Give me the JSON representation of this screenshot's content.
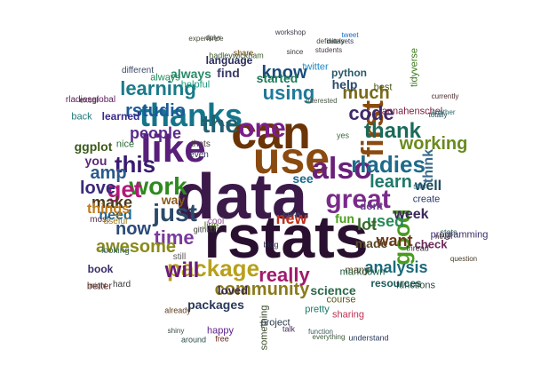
{
  "words": [
    {
      "text": "data",
      "color": "#3b1a4a"
    },
    {
      "text": "rstats",
      "color": "#2a1030"
    },
    {
      "text": "can",
      "color": "#6b3408"
    },
    {
      "text": "use",
      "color": "#8a4a10"
    },
    {
      "text": "like",
      "color": "#5a1f7a"
    },
    {
      "text": "thanks",
      "color": "#14758a"
    },
    {
      "text": "also",
      "color": "#6a1f7a"
    },
    {
      "text": "one",
      "color": "#7a1f8a"
    },
    {
      "text": "great",
      "color": "#7a2b8a"
    },
    {
      "text": "first",
      "color": "#8a4a10"
    },
    {
      "text": "the",
      "color": "#206070"
    },
    {
      "text": "this",
      "color": "#3a1a70"
    },
    {
      "text": "work",
      "color": "#2e8a1e"
    },
    {
      "text": "code",
      "color": "#3d2a6a"
    },
    {
      "text": "just",
      "color": "#2a4a6a"
    },
    {
      "text": "good",
      "color": "#4a9a1e"
    },
    {
      "text": "package",
      "color": "#b8a01a"
    },
    {
      "text": "rladies",
      "color": "#1e6a8a"
    },
    {
      "text": "get",
      "color": "#b01a7a"
    },
    {
      "text": "thank",
      "color": "#1a6a5a"
    },
    {
      "text": "learning",
      "color": "#1a7a8a"
    },
    {
      "text": "using",
      "color": "#1e7a9a"
    },
    {
      "text": "time",
      "color": "#7a3a9a"
    },
    {
      "text": "community",
      "color": "#8a7a1a"
    },
    {
      "text": "really",
      "color": "#a01a6a"
    },
    {
      "text": "amp",
      "color": "#2a5a8a"
    },
    {
      "text": "rstudio",
      "color": "#1a5a9a"
    },
    {
      "text": "much",
      "color": "#7a6a1a"
    },
    {
      "text": "now",
      "color": "#2a4a7a"
    },
    {
      "text": "love",
      "color": "#3a2a7a"
    },
    {
      "text": "will",
      "color": "#6a1a7a"
    },
    {
      "text": "awesome",
      "color": "#8a8a1a"
    },
    {
      "text": "make",
      "color": "#4a3a1a"
    },
    {
      "text": "learn",
      "color": "#1e7a6a"
    },
    {
      "text": "working",
      "color": "#6a8a1e"
    },
    {
      "text": "know",
      "color": "#1a4a7a"
    },
    {
      "text": "people",
      "color": "#5a2a8a"
    },
    {
      "text": "analysis",
      "color": "#1a6a7a"
    },
    {
      "text": "used",
      "color": "#2a8a5a"
    },
    {
      "text": "new",
      "color": "#c0301a"
    },
    {
      "text": "week",
      "color": "#3a2a5a"
    },
    {
      "text": "need",
      "color": "#1a6a9a"
    },
    {
      "text": "science",
      "color": "#2a6a4a"
    },
    {
      "text": "ggplot",
      "color": "#3a5a1a"
    },
    {
      "text": "packages",
      "color": "#2a3a5a"
    },
    {
      "text": "made",
      "color": "#5a4a2a"
    },
    {
      "text": "want",
      "color": "#6a3a1a"
    },
    {
      "text": "lot",
      "color": "#3a6a2a"
    },
    {
      "text": "way",
      "color": "#8a5a1a"
    },
    {
      "text": "help",
      "color": "#2a4a6a"
    },
    {
      "text": "see",
      "color": "#1a6a8a"
    },
    {
      "text": "fun",
      "color": "#4aa01a"
    },
    {
      "text": "well",
      "color": "#1a4a5a"
    },
    {
      "text": "think",
      "color": "#3a6a8a"
    },
    {
      "text": "things",
      "color": "#c07a1a"
    },
    {
      "text": "language",
      "color": "#2a2a5a"
    },
    {
      "text": "python",
      "color": "#2a5a6a"
    },
    {
      "text": "started",
      "color": "#1a7a5a"
    },
    {
      "text": "find",
      "color": "#3a3a6a"
    },
    {
      "text": "resources",
      "color": "#1a5a5a"
    },
    {
      "text": "loved",
      "color": "#3a2a4a"
    },
    {
      "text": "course",
      "color": "#5a5a1a"
    },
    {
      "text": "sharing",
      "color": "#c03050"
    },
    {
      "text": "check",
      "color": "#6a2a5a"
    },
    {
      "text": "create",
      "color": "#2a3a6a"
    },
    {
      "text": "book",
      "color": "#3a2a6a"
    },
    {
      "text": "you",
      "color": "#5a2a7a"
    },
    {
      "text": "dont",
      "color": "#6a3a8a"
    },
    {
      "text": "always",
      "color": "#2a8a6a"
    },
    {
      "text": "learned",
      "color": "#3a2a8a"
    },
    {
      "text": "helpful",
      "color": "#1a9a7a"
    },
    {
      "text": "best",
      "color": "#4a5a1a"
    },
    {
      "text": "pretty",
      "color": "#1a7a6a"
    },
    {
      "text": "something",
      "color": "#3a4a2a"
    },
    {
      "text": "tidyverse",
      "color": "#3a7a1a"
    },
    {
      "text": "markdown",
      "color": "#1a5a3a"
    },
    {
      "text": "twitter",
      "color": "#1a8ac0"
    },
    {
      "text": "many",
      "color": "#4a4a2a"
    },
    {
      "text": "happy",
      "color": "#5a1a8a"
    },
    {
      "text": "project",
      "color": "#2a3a4a"
    },
    {
      "text": "github",
      "color": "#3a3a3a"
    },
    {
      "text": "better",
      "color": "#5a2a2a"
    },
    {
      "text": "most",
      "color": "#4a2a4a"
    },
    {
      "text": "nice",
      "color": "#2a6a3a"
    },
    {
      "text": "looking",
      "color": "#3a6a5a"
    },
    {
      "text": "useful",
      "color": "#a07a1a"
    },
    {
      "text": "excel",
      "color": "#4a2a3a"
    },
    {
      "text": "back",
      "color": "#1a7a7a"
    },
    {
      "text": "still",
      "color": "#5a5a5a"
    },
    {
      "text": "even",
      "color": "#3a3a5a"
    },
    {
      "text": "live",
      "color": "#4a6a1a"
    },
    {
      "text": "cool",
      "color": "#8a4a8a"
    },
    {
      "text": "start",
      "color": "#1a5a7a"
    },
    {
      "text": "hadleywickham",
      "color": "#3a5a2a"
    },
    {
      "text": "rladiesglobal",
      "color": "#5a1a5a"
    },
    {
      "text": "annahenschel",
      "color": "#7a1a3a"
    },
    {
      "text": "programming",
      "color": "#3a2a6a"
    },
    {
      "text": "functions",
      "color": "#2a4a3a"
    },
    {
      "text": "always",
      "color": "#1a8a5a"
    },
    {
      "text": "different",
      "color": "#3a4a6a"
    },
    {
      "text": "share",
      "color": "#6a4a1a"
    },
    {
      "text": "thats",
      "color": "#4a3a3a"
    },
    {
      "text": "hard",
      "color": "#3a3a3a"
    },
    {
      "text": "around",
      "color": "#2a4a4a"
    },
    {
      "text": "already",
      "color": "#5a3a1a"
    },
    {
      "text": "thread",
      "color": "#3a2a3a"
    },
    {
      "text": "stats",
      "color": "#2a5a4a"
    },
    {
      "text": "free",
      "color": "#6a2a1a"
    },
    {
      "text": "understand",
      "color": "#2a3a5a"
    },
    {
      "text": "everything",
      "color": "#3a5a3a"
    },
    {
      "text": "sure",
      "color": "#4a4a6a"
    },
    {
      "text": "yes",
      "color": "#3a6a3a"
    },
    {
      "text": "blog",
      "color": "#2a2a4a"
    },
    {
      "text": "talk",
      "color": "#4a2a5a"
    },
    {
      "text": "shiny",
      "color": "#3a4a4a"
    },
    {
      "text": "dplyr",
      "color": "#2a3a3a"
    },
    {
      "text": "workshop",
      "color": "#3a3a4a"
    },
    {
      "text": "tweet",
      "color": "#1a6ac0"
    },
    {
      "text": "students",
      "color": "#4a3a4a"
    },
    {
      "text": "definitely",
      "color": "#3a4a3a"
    },
    {
      "text": "experience",
      "color": "#4a4a3a"
    },
    {
      "text": "since",
      "color": "#3a3a3a"
    },
    {
      "text": "question",
      "color": "#4a3a2a"
    },
    {
      "text": "never",
      "color": "#3a2a2a"
    },
    {
      "text": "totally",
      "color": "#2a4a5a"
    },
    {
      "text": "currently",
      "color": "#4a2a2a"
    },
    {
      "text": "another",
      "color": "#2a6a6a"
    },
    {
      "text": "function",
      "color": "#3a5a5a"
    },
    {
      "text": "interested",
      "color": "#4a5a4a"
    },
    {
      "text": "might",
      "color": "#5a4a3a"
    },
    {
      "text": "datasets",
      "color": "#3a3a5a"
    },
    {
      "text": "rmarkdown",
      "color": "#2a5a3a"
    }
  ]
}
